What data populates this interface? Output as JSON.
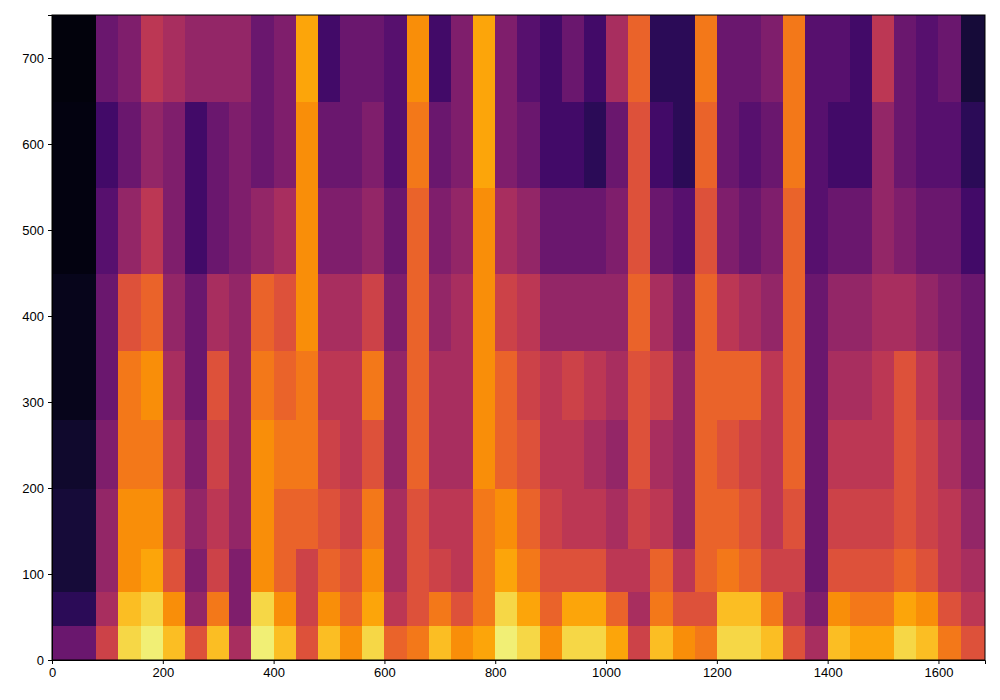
{
  "chart_data": {
    "type": "heatmap",
    "color": "inferno",
    "xlim": [
      0,
      1684
    ],
    "ylim": [
      0,
      750
    ],
    "xticks": [
      0,
      200,
      400,
      600,
      800,
      1000,
      1200,
      1400,
      1600
    ],
    "yticks": [
      0,
      100,
      200,
      300,
      400,
      500,
      600,
      700
    ],
    "zlim": [
      0,
      1
    ],
    "x_edges": [
      0,
      40,
      80,
      120,
      160,
      200,
      240,
      280,
      320,
      360,
      400,
      440,
      480,
      520,
      560,
      600,
      640,
      680,
      720,
      760,
      800,
      840,
      880,
      920,
      960,
      1000,
      1040,
      1080,
      1120,
      1160,
      1200,
      1240,
      1280,
      1320,
      1360,
      1400,
      1440,
      1480,
      1520,
      1560,
      1600,
      1640,
      1684
    ],
    "y_edges": [
      0,
      40,
      80,
      130,
      200,
      280,
      360,
      450,
      550,
      650,
      750
    ],
    "cells": [
      [
        0.3,
        0.15,
        0.1,
        0.1,
        0.08,
        0.05,
        0.05,
        0.03,
        0.03,
        0.02
      ],
      [
        0.3,
        0.15,
        0.1,
        0.1,
        0.08,
        0.05,
        0.05,
        0.03,
        0.03,
        0.02
      ],
      [
        0.55,
        0.45,
        0.4,
        0.4,
        0.35,
        0.3,
        0.3,
        0.25,
        0.2,
        0.3
      ],
      [
        0.9,
        0.85,
        0.75,
        0.75,
        0.7,
        0.7,
        0.6,
        0.4,
        0.3,
        0.35
      ],
      [
        0.95,
        0.9,
        0.8,
        0.75,
        0.7,
        0.75,
        0.65,
        0.5,
        0.4,
        0.5
      ],
      [
        0.85,
        0.75,
        0.6,
        0.55,
        0.5,
        0.45,
        0.4,
        0.35,
        0.35,
        0.45
      ],
      [
        0.6,
        0.4,
        0.35,
        0.4,
        0.35,
        0.3,
        0.3,
        0.2,
        0.2,
        0.4
      ],
      [
        0.85,
        0.7,
        0.55,
        0.5,
        0.55,
        0.6,
        0.45,
        0.3,
        0.3,
        0.4
      ],
      [
        0.45,
        0.35,
        0.35,
        0.4,
        0.4,
        0.4,
        0.4,
        0.35,
        0.35,
        0.4
      ],
      [
        0.95,
        0.9,
        0.75,
        0.75,
        0.75,
        0.7,
        0.65,
        0.4,
        0.3,
        0.3
      ],
      [
        0.85,
        0.75,
        0.65,
        0.65,
        0.7,
        0.65,
        0.6,
        0.45,
        0.35,
        0.35
      ],
      [
        0.6,
        0.55,
        0.55,
        0.65,
        0.7,
        0.7,
        0.75,
        0.75,
        0.75,
        0.8
      ],
      [
        0.85,
        0.75,
        0.65,
        0.6,
        0.55,
        0.5,
        0.45,
        0.35,
        0.3,
        0.2
      ],
      [
        0.75,
        0.65,
        0.6,
        0.55,
        0.5,
        0.5,
        0.45,
        0.35,
        0.3,
        0.3
      ],
      [
        0.9,
        0.8,
        0.75,
        0.7,
        0.6,
        0.7,
        0.55,
        0.4,
        0.35,
        0.3
      ],
      [
        0.65,
        0.5,
        0.45,
        0.45,
        0.4,
        0.4,
        0.35,
        0.3,
        0.25,
        0.25
      ],
      [
        0.7,
        0.6,
        0.6,
        0.6,
        0.65,
        0.65,
        0.65,
        0.65,
        0.7,
        0.75
      ],
      [
        0.85,
        0.7,
        0.55,
        0.5,
        0.45,
        0.45,
        0.4,
        0.35,
        0.3,
        0.2
      ],
      [
        0.75,
        0.6,
        0.5,
        0.5,
        0.45,
        0.45,
        0.45,
        0.4,
        0.35,
        0.35
      ],
      [
        0.8,
        0.7,
        0.7,
        0.7,
        0.75,
        0.75,
        0.75,
        0.75,
        0.8,
        0.8
      ],
      [
        0.95,
        0.9,
        0.8,
        0.75,
        0.65,
        0.65,
        0.55,
        0.45,
        0.35,
        0.35
      ],
      [
        0.9,
        0.8,
        0.7,
        0.65,
        0.6,
        0.55,
        0.5,
        0.4,
        0.3,
        0.25
      ],
      [
        0.75,
        0.65,
        0.6,
        0.55,
        0.5,
        0.5,
        0.4,
        0.3,
        0.2,
        0.2
      ],
      [
        0.9,
        0.8,
        0.6,
        0.5,
        0.5,
        0.55,
        0.4,
        0.3,
        0.2,
        0.3
      ],
      [
        0.9,
        0.8,
        0.6,
        0.5,
        0.45,
        0.5,
        0.4,
        0.3,
        0.15,
        0.2
      ],
      [
        0.8,
        0.65,
        0.5,
        0.45,
        0.4,
        0.45,
        0.4,
        0.35,
        0.3,
        0.45
      ],
      [
        0.55,
        0.45,
        0.5,
        0.55,
        0.6,
        0.6,
        0.65,
        0.6,
        0.6,
        0.65
      ],
      [
        0.85,
        0.7,
        0.65,
        0.5,
        0.45,
        0.55,
        0.45,
        0.3,
        0.2,
        0.15
      ],
      [
        0.75,
        0.6,
        0.5,
        0.4,
        0.4,
        0.4,
        0.35,
        0.25,
        0.15,
        0.15
      ],
      [
        0.7,
        0.6,
        0.65,
        0.65,
        0.65,
        0.65,
        0.65,
        0.6,
        0.65,
        0.7
      ],
      [
        0.9,
        0.85,
        0.7,
        0.65,
        0.6,
        0.65,
        0.5,
        0.35,
        0.3,
        0.3
      ],
      [
        0.9,
        0.85,
        0.65,
        0.6,
        0.55,
        0.65,
        0.45,
        0.3,
        0.25,
        0.3
      ],
      [
        0.85,
        0.7,
        0.55,
        0.5,
        0.5,
        0.5,
        0.4,
        0.35,
        0.3,
        0.35
      ],
      [
        0.6,
        0.5,
        0.55,
        0.6,
        0.65,
        0.65,
        0.65,
        0.65,
        0.7,
        0.7
      ],
      [
        0.45,
        0.35,
        0.3,
        0.3,
        0.3,
        0.3,
        0.3,
        0.25,
        0.25,
        0.25
      ],
      [
        0.85,
        0.75,
        0.6,
        0.55,
        0.5,
        0.45,
        0.4,
        0.3,
        0.2,
        0.25
      ],
      [
        0.8,
        0.7,
        0.6,
        0.55,
        0.5,
        0.45,
        0.4,
        0.3,
        0.2,
        0.2
      ],
      [
        0.8,
        0.7,
        0.6,
        0.55,
        0.5,
        0.5,
        0.45,
        0.4,
        0.4,
        0.5
      ],
      [
        0.9,
        0.8,
        0.65,
        0.6,
        0.6,
        0.6,
        0.45,
        0.35,
        0.3,
        0.3
      ],
      [
        0.85,
        0.75,
        0.6,
        0.55,
        0.55,
        0.5,
        0.4,
        0.3,
        0.25,
        0.25
      ],
      [
        0.7,
        0.6,
        0.5,
        0.5,
        0.45,
        0.4,
        0.35,
        0.3,
        0.25,
        0.3
      ],
      [
        0.6,
        0.5,
        0.45,
        0.4,
        0.35,
        0.3,
        0.3,
        0.2,
        0.15,
        0.1
      ]
    ]
  }
}
